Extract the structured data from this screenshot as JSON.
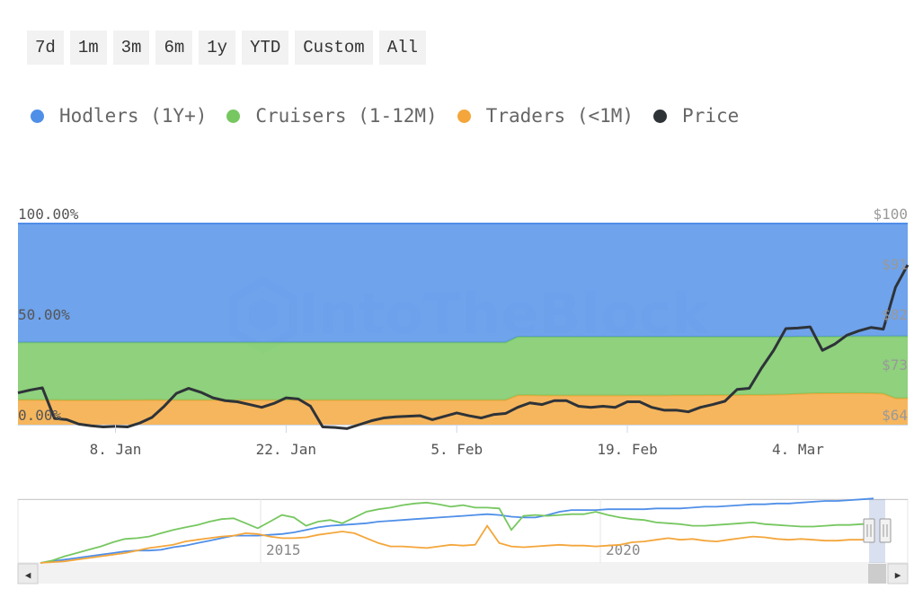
{
  "range_buttons": [
    "7d",
    "1m",
    "3m",
    "6m",
    "1y",
    "YTD",
    "Custom",
    "All"
  ],
  "legend": [
    {
      "label": "Hodlers (1Y+)",
      "color": "#4f8fe8"
    },
    {
      "label": "Cruisers (1-12M)",
      "color": "#76c760"
    },
    {
      "label": "Traders (<1M)",
      "color": "#f4a63b"
    },
    {
      "label": "Price",
      "color": "#2e3338"
    }
  ],
  "watermark": "IntoTheBlock",
  "chart_data": {
    "type": "area",
    "title": "",
    "x": [
      "Dec 31",
      "Jan 1",
      "Jan 2",
      "Jan 3",
      "Jan 4",
      "Jan 5",
      "Jan 6",
      "Jan 7",
      "Jan 8",
      "Jan 9",
      "Jan 10",
      "Jan 11",
      "Jan 12",
      "Jan 13",
      "Jan 14",
      "Jan 15",
      "Jan 16",
      "Jan 17",
      "Jan 18",
      "Jan 19",
      "Jan 20",
      "Jan 21",
      "Jan 22",
      "Jan 23",
      "Jan 24",
      "Jan 25",
      "Jan 26",
      "Jan 27",
      "Jan 28",
      "Jan 29",
      "Jan 30",
      "Jan 31",
      "Feb 1",
      "Feb 2",
      "Feb 3",
      "Feb 4",
      "Feb 5",
      "Feb 6",
      "Feb 7",
      "Feb 8",
      "Feb 9",
      "Feb 10",
      "Feb 11",
      "Feb 12",
      "Feb 13",
      "Feb 14",
      "Feb 15",
      "Feb 16",
      "Feb 17",
      "Feb 18",
      "Feb 19",
      "Feb 20",
      "Feb 21",
      "Feb 22",
      "Feb 23",
      "Feb 24",
      "Feb 25",
      "Feb 26",
      "Feb 27",
      "Feb 28",
      "Feb 29",
      "Mar 1",
      "Mar 2",
      "Mar 3",
      "Mar 4",
      "Mar 5",
      "Mar 6",
      "Mar 7",
      "Mar 8",
      "Mar 9",
      "Mar 10",
      "Mar 11",
      "Mar 12",
      "Mar 13"
    ],
    "x_ticks": [
      "8. Jan",
      "22. Jan",
      "5. Feb",
      "19. Feb",
      "4. Mar"
    ],
    "y_left_ticks": [
      "0.00%",
      "50.00%",
      "100.00%"
    ],
    "y_left_range": [
      0,
      100
    ],
    "y_right_ticks": [
      "$64",
      "$73",
      "$82",
      "$91",
      "$100"
    ],
    "y_right_range": [
      64,
      100
    ],
    "series": [
      {
        "name": "Traders (<1M)",
        "axis": "left",
        "stacked": true,
        "color": "#f4a63b",
        "values": [
          12.3,
          12.3,
          12.2,
          12.2,
          12.1,
          12.1,
          12.1,
          12.1,
          12.1,
          12.2,
          12.2,
          12.3,
          12.2,
          12.2,
          12.2,
          12.2,
          12.2,
          12.2,
          12.2,
          12.2,
          12.2,
          12.2,
          12.2,
          12.2,
          12.2,
          12.2,
          12.2,
          12.2,
          12.2,
          12.2,
          12.2,
          12.2,
          12.2,
          12.2,
          12.2,
          12.2,
          12.2,
          12.2,
          12.2,
          12.2,
          12.2,
          14.6,
          14.6,
          14.5,
          14.5,
          14.5,
          14.5,
          14.5,
          14.5,
          14.5,
          14.5,
          14.5,
          14.5,
          14.5,
          14.6,
          14.6,
          14.6,
          14.7,
          14.7,
          14.7,
          14.8,
          14.8,
          14.9,
          15.0,
          15.3,
          15.5,
          15.6,
          15.6,
          15.7,
          15.7,
          15.6,
          15.4,
          13.1,
          13.1
        ]
      },
      {
        "name": "Cruisers (1-12M)",
        "axis": "left",
        "stacked": true,
        "color": "#76c760",
        "values": [
          28.6,
          28.6,
          28.7,
          28.7,
          28.8,
          28.8,
          28.8,
          28.8,
          28.8,
          28.7,
          28.7,
          28.6,
          28.7,
          28.7,
          28.7,
          28.7,
          28.7,
          28.7,
          28.7,
          28.7,
          28.7,
          28.7,
          28.7,
          28.7,
          28.7,
          28.7,
          28.7,
          28.7,
          28.7,
          28.7,
          28.7,
          28.7,
          28.7,
          28.7,
          28.7,
          28.7,
          28.7,
          28.7,
          28.7,
          28.7,
          28.7,
          29.1,
          29.1,
          29.2,
          29.2,
          29.2,
          29.2,
          29.2,
          29.2,
          29.2,
          29.2,
          29.2,
          29.2,
          29.2,
          29.1,
          29.1,
          29.1,
          29.0,
          29.0,
          29.0,
          28.9,
          28.9,
          28.8,
          28.7,
          28.5,
          28.3,
          28.2,
          28.2,
          28.2,
          28.3,
          28.4,
          28.6,
          30.9,
          30.9
        ]
      },
      {
        "name": "Hodlers (1Y+)",
        "axis": "left",
        "stacked": true,
        "color": "#4f8fe8",
        "values": [
          59.1,
          59.1,
          59.1,
          59.1,
          59.1,
          59.1,
          59.1,
          59.1,
          59.1,
          59.1,
          59.1,
          59.1,
          59.1,
          59.1,
          59.1,
          59.1,
          59.1,
          59.1,
          59.1,
          59.1,
          59.1,
          59.1,
          59.1,
          59.1,
          59.1,
          59.1,
          59.1,
          59.1,
          59.1,
          59.1,
          59.1,
          59.1,
          59.1,
          59.1,
          59.1,
          59.1,
          59.1,
          59.1,
          59.1,
          59.1,
          59.1,
          56.3,
          56.3,
          56.3,
          56.3,
          56.3,
          56.3,
          56.3,
          56.3,
          56.3,
          56.3,
          56.3,
          56.3,
          56.3,
          56.3,
          56.3,
          56.3,
          56.3,
          56.3,
          56.3,
          56.3,
          56.3,
          56.3,
          56.3,
          56.2,
          56.2,
          56.2,
          56.2,
          56.1,
          56.0,
          56.0,
          56.0,
          56.0,
          56.0
        ]
      },
      {
        "name": "Price",
        "axis": "right",
        "color": "#2e3338",
        "values": [
          69.7,
          70.2,
          70.6,
          65.1,
          64.9,
          64.1,
          63.8,
          63.6,
          63.7,
          63.6,
          64.3,
          65.3,
          67.3,
          69.6,
          70.5,
          69.8,
          68.8,
          68.3,
          68.1,
          67.6,
          67.1,
          67.8,
          68.8,
          68.6,
          67.3,
          63.6,
          63.5,
          63.3,
          64.0,
          64.7,
          65.2,
          65.4,
          65.5,
          65.6,
          64.9,
          65.5,
          66.1,
          65.6,
          65.2,
          65.8,
          66.0,
          67.1,
          67.9,
          67.6,
          68.3,
          68.3,
          67.3,
          67.1,
          67.3,
          67.1,
          68.1,
          68.1,
          67.1,
          66.6,
          66.6,
          66.3,
          67.1,
          67.6,
          68.2,
          70.3,
          70.5,
          74.1,
          77.3,
          81.2,
          81.3,
          81.5,
          77.3,
          78.4,
          80.0,
          80.8,
          81.4,
          81.1,
          88.6,
          92.6
        ]
      }
    ]
  },
  "navigator": {
    "x_labels": [
      "2015",
      "2020"
    ],
    "series": [
      {
        "name": "Hodlers (1Y+)",
        "color": "#4f8fe8",
        "values": [
          0,
          2,
          4,
          6,
          8,
          10,
          12,
          14,
          15,
          15,
          16,
          19,
          21,
          24,
          27,
          30,
          33,
          33,
          33,
          34,
          35,
          37,
          40,
          43,
          45,
          46,
          47,
          48,
          50,
          51,
          52,
          53,
          54,
          55,
          56,
          57,
          58,
          59,
          58,
          56,
          55,
          55,
          58,
          62,
          64,
          64,
          64,
          65,
          65,
          65,
          65,
          66,
          66,
          66,
          67,
          68,
          68,
          69,
          70,
          71,
          71,
          72,
          72,
          73,
          74,
          75,
          75,
          76,
          77,
          78
        ]
      },
      {
        "name": "Cruisers (1-12M)",
        "color": "#76c760",
        "values": [
          0,
          3,
          8,
          12,
          16,
          20,
          25,
          29,
          30,
          32,
          36,
          40,
          43,
          46,
          50,
          53,
          54,
          48,
          42,
          50,
          58,
          55,
          45,
          50,
          52,
          48,
          55,
          62,
          65,
          67,
          70,
          72,
          73,
          71,
          68,
          70,
          67,
          67,
          66,
          40,
          57,
          58,
          57,
          58,
          59,
          59,
          62,
          58,
          55,
          53,
          52,
          49,
          48,
          47,
          45,
          45,
          46,
          47,
          48,
          49,
          47,
          46,
          45,
          44,
          44,
          45,
          46,
          46,
          47,
          48
        ]
      },
      {
        "name": "Traders (<1M)",
        "color": "#f4a63b",
        "values": [
          0,
          1,
          2,
          4,
          6,
          8,
          10,
          12,
          15,
          18,
          20,
          22,
          26,
          28,
          30,
          32,
          33,
          36,
          35,
          32,
          30,
          30,
          31,
          34,
          36,
          38,
          36,
          30,
          24,
          20,
          20,
          19,
          18,
          20,
          22,
          21,
          22,
          45,
          24,
          20,
          19,
          20,
          21,
          22,
          21,
          21,
          20,
          21,
          22,
          25,
          26,
          28,
          30,
          28,
          29,
          27,
          26,
          28,
          30,
          32,
          31,
          29,
          28,
          29,
          28,
          27,
          27,
          28,
          28,
          29
        ]
      }
    ]
  },
  "scrollbar": {
    "left_arrow": "◀",
    "right_arrow": "▶"
  }
}
